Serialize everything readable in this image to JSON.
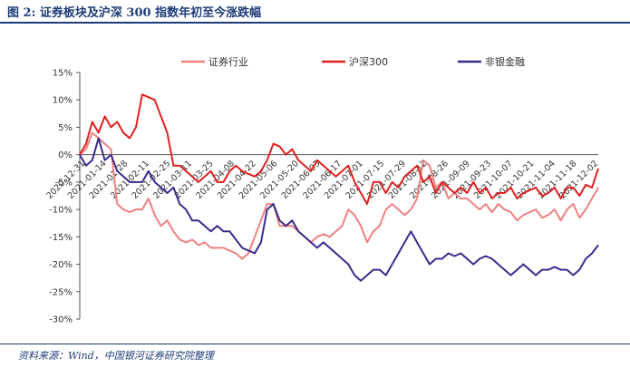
{
  "header": {
    "title": "图 2:  证券板块及沪深 300 指数年初至今涨跌幅"
  },
  "footer": {
    "source": "资料来源：Wind，中国银河证券研究院整理"
  },
  "chart_data": {
    "type": "line",
    "title": "证券板块及沪深 300 指数年初至今涨跌幅",
    "xlabel": "",
    "ylabel": "",
    "ylim": [
      -30,
      15
    ],
    "yticks": [
      15,
      10,
      5,
      0,
      -5,
      -10,
      -15,
      -20,
      -25,
      -30
    ],
    "ytick_labels": [
      "15%",
      "10%",
      "5%",
      "0%",
      "-5%",
      "-10%",
      "-15%",
      "-20%",
      "-25%",
      "-30%"
    ],
    "xtick_labels": [
      "2020-12-31",
      "2021-01-14",
      "2021-01-28",
      "2021-02-11",
      "2021-02-25",
      "2021-03-11",
      "2021-03-25",
      "2021-04-08",
      "2021-04-22",
      "2021-05-06",
      "2021-05-20",
      "2021-06-03",
      "2021-06-17",
      "2021-07-01",
      "2021-07-15",
      "2021-07-29",
      "2021-08-12",
      "2021-08-26",
      "2021-09-09",
      "2021-09-23",
      "2021-10-07",
      "2021-10-21",
      "2021-11-04",
      "2021-11-18",
      "2021-12-02"
    ],
    "legend_position": "top",
    "series": [
      {
        "name": "证券行业",
        "color": "#f08080",
        "values": [
          0,
          1,
          4,
          3,
          2,
          1,
          -9,
          -10,
          -10.5,
          -10,
          -10,
          -8,
          -11,
          -13,
          -12,
          -14,
          -15.5,
          -16,
          -15.5,
          -16.5,
          -16,
          -17,
          -17,
          -17,
          -17.5,
          -18,
          -19,
          -18,
          -15,
          -12,
          -9,
          -9,
          -13,
          -13,
          -13,
          -14,
          -15,
          -16,
          -15,
          -14.5,
          -15,
          -14,
          -13,
          -10,
          -11,
          -13,
          -16,
          -14,
          -13,
          -10,
          -9,
          -10,
          -11,
          -10,
          -8,
          -1,
          -2,
          -6,
          -5,
          -8,
          -7,
          -8,
          -8,
          -9,
          -10,
          -9,
          -10.5,
          -9,
          -10,
          -10.5,
          -12,
          -11,
          -10.5,
          -10,
          -11.5,
          -11,
          -10,
          -12,
          -10,
          -9,
          -11.5,
          -10,
          -8,
          -6
        ]
      },
      {
        "name": "沪深300",
        "color": "#e02020",
        "values": [
          0,
          2,
          6,
          4,
          7,
          5,
          6,
          4,
          3,
          5,
          11,
          10.5,
          10,
          7,
          4,
          -2,
          -2,
          -3,
          -4,
          -5,
          -4,
          -3,
          -5,
          -5,
          -3,
          -2,
          -3,
          -3.5,
          -4,
          -3,
          -1,
          2,
          1.5,
          0,
          1,
          -1,
          -2,
          -3,
          -1,
          -2,
          -3,
          -4,
          -3,
          -2,
          -5,
          -7,
          -9,
          -5,
          -5,
          -7,
          -5,
          -6,
          -4,
          -3,
          -2,
          -5,
          -4,
          -7,
          -5,
          -6,
          -7,
          -6,
          -7,
          -5,
          -7,
          -6,
          -8,
          -7,
          -7,
          -6,
          -8,
          -7,
          -6.5,
          -6,
          -7.5,
          -7,
          -6,
          -8,
          -6,
          -6,
          -7.5,
          -5.5,
          -6,
          -2.5
        ]
      },
      {
        "name": "非银金融",
        "color": "#3a2a8c",
        "values": [
          0,
          -2,
          -1,
          3,
          -1,
          0,
          -3,
          -4,
          -5,
          -5,
          -5,
          -3,
          -5,
          -6,
          -7,
          -6,
          -9,
          -10,
          -12,
          -12,
          -13,
          -14,
          -13,
          -14,
          -14,
          -15.5,
          -17,
          -17.5,
          -18,
          -16,
          -10,
          -9,
          -12,
          -13,
          -12,
          -14,
          -15,
          -16,
          -17,
          -16,
          -17,
          -18,
          -19,
          -20,
          -22,
          -23,
          -22,
          -21,
          -21,
          -22,
          -20,
          -18,
          -16,
          -14,
          -16,
          -18,
          -20,
          -19,
          -19,
          -18,
          -18.5,
          -18,
          -19,
          -20,
          -19,
          -18.5,
          -19,
          -20,
          -21,
          -22,
          -21,
          -20,
          -21,
          -22,
          -21,
          -21,
          -20.5,
          -21,
          -21,
          -22,
          -21,
          -19,
          -18,
          -16.5
        ]
      }
    ]
  }
}
